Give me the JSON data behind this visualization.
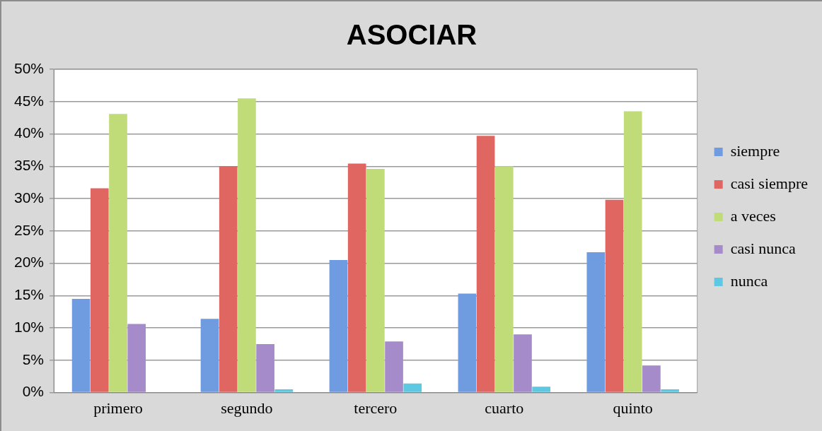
{
  "chart_data": {
    "type": "bar",
    "title": "ASOCIAR",
    "categories": [
      "primero",
      "segundo",
      "tercero",
      "cuarto",
      "quinto"
    ],
    "series": [
      {
        "name": "siempre",
        "color": "#6f9be0",
        "values": [
          14.5,
          11.4,
          20.5,
          15.3,
          21.7
        ]
      },
      {
        "name": "casi siempre",
        "color": "#e06662",
        "values": [
          31.6,
          35.0,
          35.4,
          39.7,
          29.8
        ]
      },
      {
        "name": "a veces",
        "color": "#bfdc78",
        "values": [
          43.1,
          45.5,
          34.6,
          35.0,
          43.5
        ]
      },
      {
        "name": "casi nunca",
        "color": "#a68bcb",
        "values": [
          10.6,
          7.5,
          7.9,
          9.0,
          4.2
        ]
      },
      {
        "name": "nunca",
        "color": "#5cc8e2",
        "values": [
          0,
          0.5,
          1.4,
          0.9,
          0.5
        ]
      }
    ],
    "ylim": [
      0,
      50
    ],
    "yticks": [
      {
        "value": 0,
        "label": "0%"
      },
      {
        "value": 5,
        "label": "5%"
      },
      {
        "value": 10,
        "label": "10%"
      },
      {
        "value": 15,
        "label": "15%"
      },
      {
        "value": 20,
        "label": "20%"
      },
      {
        "value": 25,
        "label": "25%"
      },
      {
        "value": 30,
        "label": "30%"
      },
      {
        "value": 35,
        "label": "35%"
      },
      {
        "value": 40,
        "label": "40%"
      },
      {
        "value": 45,
        "label": "45%"
      },
      {
        "value": 50,
        "label": "50%"
      }
    ],
    "grid": "y",
    "legend": "right"
  }
}
